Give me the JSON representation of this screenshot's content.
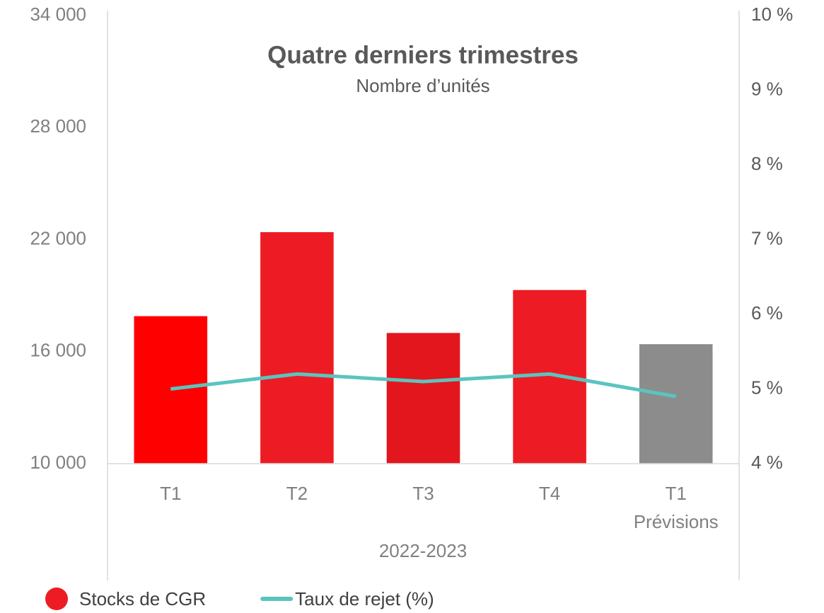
{
  "chart_data": {
    "type": "bar_line",
    "title": "Quatre derniers trimestres",
    "subtitle": "Nombre d’unités",
    "x_label": "2022-2023",
    "categories": [
      "T1",
      "T2",
      "T3",
      "T4",
      [
        "T1",
        "Prévisions"
      ]
    ],
    "series": [
      {
        "name": "Stocks de CGR",
        "type": "bar",
        "color": "#ed1c24",
        "colors": [
          "#ff0000",
          "#ed1c24",
          "#e3161d",
          "#ed1c24",
          "#8c8c8c"
        ],
        "values": [
          17900,
          22400,
          17000,
          19300,
          16400
        ]
      },
      {
        "name": "Taux de rejet (%)",
        "type": "line",
        "axis": "y2",
        "color": "#5bc4bf",
        "values": [
          5.0,
          5.2,
          5.1,
          5.2,
          4.9
        ]
      }
    ],
    "ylim": [
      10000,
      34000
    ],
    "yticks": [
      {
        "value": 10000,
        "label": "10 000"
      },
      {
        "value": 16000,
        "label": "16 000"
      },
      {
        "value": 22000,
        "label": "22 000"
      },
      {
        "value": 28000,
        "label": "28 000"
      },
      {
        "value": 34000,
        "label": "34 000"
      }
    ],
    "y2lim": [
      4,
      10
    ],
    "y2ticks": [
      {
        "value": 4,
        "label": "4 %"
      },
      {
        "value": 5,
        "label": "5 %"
      },
      {
        "value": 6,
        "label": "6 %"
      },
      {
        "value": 7,
        "label": "7 %"
      },
      {
        "value": 8,
        "label": "8 %"
      },
      {
        "value": 9,
        "label": "9 %"
      },
      {
        "value": 10,
        "label": "10 %"
      }
    ],
    "legend": "bottom"
  }
}
